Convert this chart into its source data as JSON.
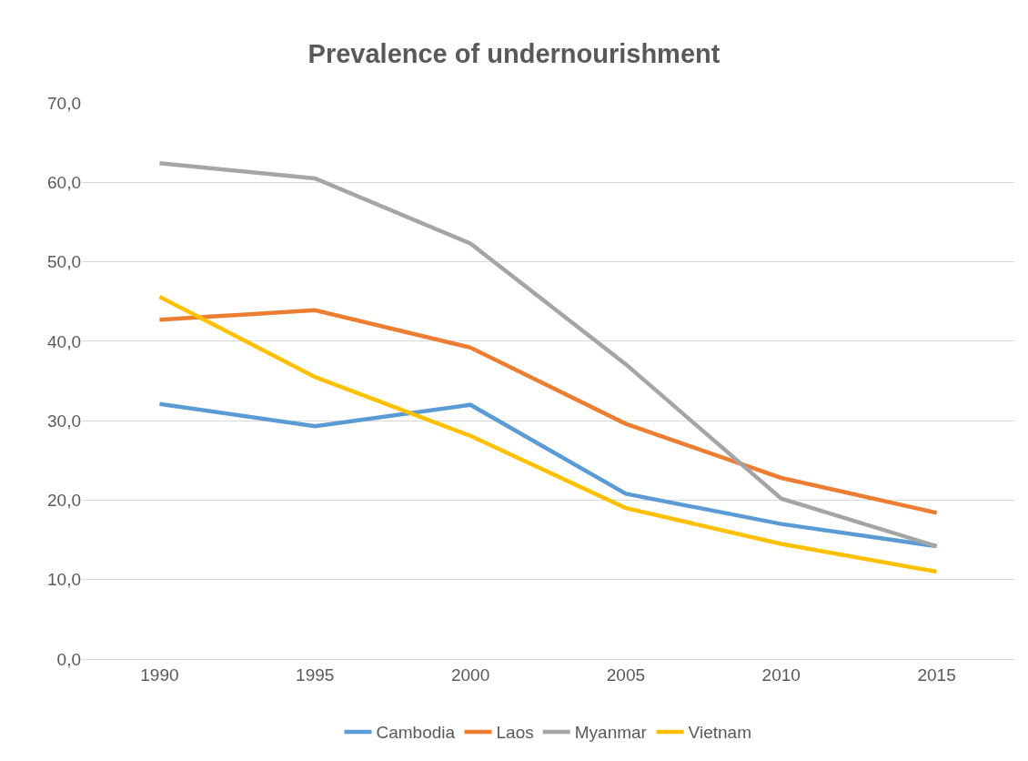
{
  "chart_data": {
    "type": "line",
    "title": "Prevalence of undernourishment",
    "categories": [
      "1990",
      "1995",
      "2000",
      "2005",
      "2010",
      "2015"
    ],
    "series": [
      {
        "name": "Cambodia",
        "color": "#5b9bd5",
        "values": [
          32.1,
          29.3,
          32.0,
          20.8,
          17.0,
          14.2
        ]
      },
      {
        "name": "Laos",
        "color": "#ed7d31",
        "values": [
          42.7,
          43.9,
          39.2,
          29.6,
          22.8,
          18.4
        ]
      },
      {
        "name": "Myanmar",
        "color": "#a5a5a5",
        "values": [
          62.4,
          60.5,
          52.3,
          37.1,
          20.2,
          14.2
        ]
      },
      {
        "name": "Vietnam",
        "color": "#ffc000",
        "values": [
          45.6,
          35.5,
          28.1,
          19.0,
          14.5,
          11.0
        ]
      }
    ],
    "ylim": [
      0,
      70
    ],
    "yticks": [
      {
        "value": 0,
        "label": "0,0"
      },
      {
        "value": 10,
        "label": "10,0"
      },
      {
        "value": 20,
        "label": "20,0"
      },
      {
        "value": 30,
        "label": "30,0"
      },
      {
        "value": 40,
        "label": "40,0"
      },
      {
        "value": 50,
        "label": "50,0"
      },
      {
        "value": 60,
        "label": "60,0"
      },
      {
        "value": 70,
        "label": "70,0"
      }
    ],
    "grid": "y",
    "legend": "bottom",
    "marker": "none",
    "line_style": "solid"
  }
}
